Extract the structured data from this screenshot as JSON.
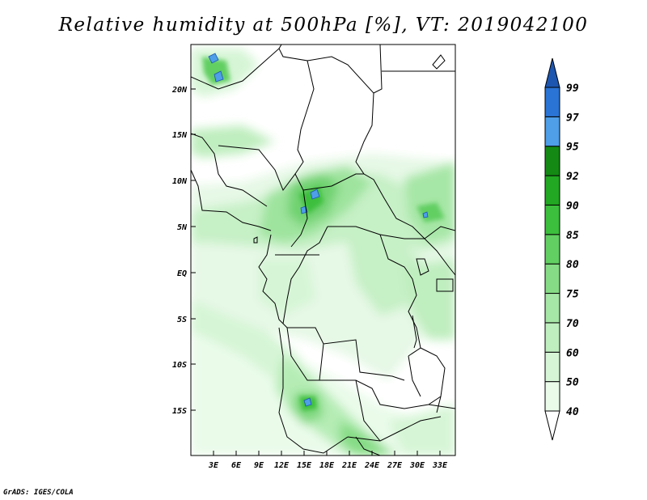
{
  "title": "Relative humidity at 500hPa [%], VT: 2019042100",
  "footer": "GrADS: IGES/COLA",
  "map": {
    "lat_labels": [
      "20N",
      "15N",
      "10N",
      "5N",
      "EQ",
      "5S",
      "10S",
      "15S"
    ],
    "lon_labels": [
      "3E",
      "6E",
      "9E",
      "12E",
      "15E",
      "18E",
      "21E",
      "24E",
      "27E",
      "30E",
      "33E"
    ],
    "lon_range": [
      "0E",
      "35E"
    ],
    "lat_range": [
      "20S",
      "25N"
    ]
  },
  "colorbar": {
    "levels": [
      "40",
      "50",
      "60",
      "70",
      "75",
      "80",
      "85",
      "90",
      "92",
      "95",
      "97",
      "99"
    ],
    "colors": [
      "#ffffff",
      "#eafbea",
      "#d6f5d6",
      "#bfeebf",
      "#a6e6a6",
      "#86dc86",
      "#62cf62",
      "#3cbf3c",
      "#22a822",
      "#148a14",
      "#4e9ee8",
      "#2a74d6",
      "#1d56b0"
    ]
  }
}
